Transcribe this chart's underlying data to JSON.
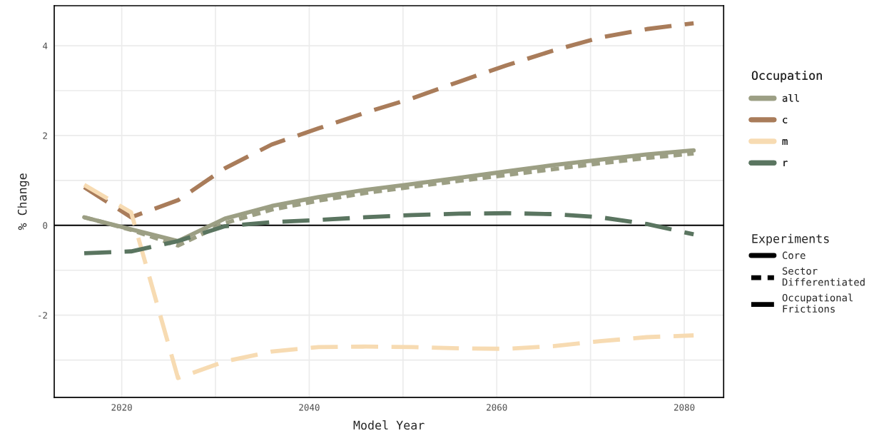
{
  "chart_data": {
    "type": "line",
    "xlabel": "Model Year",
    "ylabel": "% Change",
    "x": [
      2016,
      2021,
      2026,
      2031,
      2036,
      2041,
      2046,
      2051,
      2056,
      2061,
      2066,
      2071,
      2076,
      2081
    ],
    "series": [
      {
        "name": "all",
        "color": "#9c9f84",
        "line_style": "solid",
        "values": [
          0.18,
          -0.09,
          -0.35,
          0.15,
          0.43,
          0.63,
          0.79,
          0.92,
          1.06,
          1.2,
          1.34,
          1.46,
          1.58,
          1.67
        ]
      },
      {
        "color": "#9c9f84",
        "line_style": "dashed",
        "values": [
          0.18,
          -0.1,
          -0.45,
          0.05,
          0.35,
          0.55,
          0.72,
          0.86,
          0.99,
          1.12,
          1.25,
          1.38,
          1.5,
          1.6
        ]
      },
      {
        "name": "c",
        "color": "#a97c5a",
        "line_style": "longdash",
        "values": [
          0.85,
          0.18,
          0.56,
          1.27,
          1.8,
          2.16,
          2.51,
          2.83,
          3.2,
          3.56,
          3.89,
          4.18,
          4.37,
          4.5
        ]
      },
      {
        "name": "m",
        "color": "#f7dbb2",
        "line_style": "longdash",
        "values": [
          0.9,
          0.29,
          -3.4,
          -3.03,
          -2.81,
          -2.71,
          -2.7,
          -2.71,
          -2.74,
          -2.75,
          -2.69,
          -2.58,
          -2.49,
          -2.45
        ]
      },
      {
        "name": "r",
        "color": "#5a7560",
        "line_style": "longdash",
        "values": [
          -0.62,
          -0.58,
          -0.35,
          -0.02,
          0.07,
          0.12,
          0.18,
          0.23,
          0.26,
          0.27,
          0.25,
          0.18,
          0.03,
          -0.2
        ]
      }
    ],
    "legend_title": [
      "Occupation",
      "Experiments"
    ],
    "annotations": [
      "Core",
      "Sector Differentiated",
      "Occupational Frictions"
    ],
    "legend": "right",
    "xlim": [
      2012.8,
      2084.2
    ],
    "xticks": [
      2020,
      {
        "value": 2030,
        "label": null
      },
      2040,
      {
        "value": 2050,
        "label": null
      },
      2060,
      {
        "value": 2070,
        "label": null
      },
      2080
    ],
    "ylim": [
      -3.83,
      4.89
    ],
    "yticks": [
      {
        "value": -3,
        "label": null
      },
      -2,
      {
        "value": -1,
        "label": null
      },
      0,
      {
        "value": 1,
        "label": null
      },
      2,
      {
        "value": 3,
        "label": null
      },
      4
    ],
    "grid": true,
    "ref_lines": [
      {
        "axis": "y",
        "value": 0,
        "color": "#000000"
      }
    ]
  }
}
